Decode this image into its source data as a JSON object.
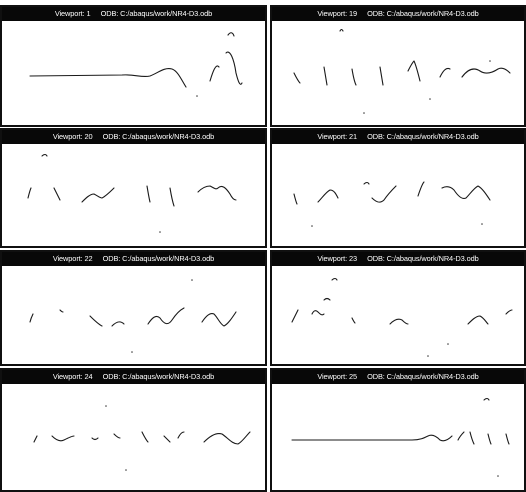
{
  "viewports": [
    {
      "id": "vp-1",
      "label": "Viewport: 1",
      "odb": "ODB: C:/abaqus/work/NR4-D3.odb"
    },
    {
      "id": "vp-19",
      "label": "Viewport: 19",
      "odb": "ODB: C:/abaqus/work/NR4-D3.odb"
    },
    {
      "id": "vp-20",
      "label": "Viewport: 20",
      "odb": "ODB: C:/abaqus/work/NR4-D3.odb"
    },
    {
      "id": "vp-21",
      "label": "Viewport: 21",
      "odb": "ODB: C:/abaqus/work/NR4-D3.odb"
    },
    {
      "id": "vp-22",
      "label": "Viewport: 22",
      "odb": "ODB: C:/abaqus/work/NR4-D3.odb"
    },
    {
      "id": "vp-23",
      "label": "Viewport: 23",
      "odb": "ODB: C:/abaqus/work/NR4-D3.odb"
    },
    {
      "id": "vp-24",
      "label": "Viewport: 24",
      "odb": "ODB: C:/abaqus/work/NR4-D3.odb"
    },
    {
      "id": "vp-25",
      "label": "Viewport: 25",
      "odb": "ODB: C:/abaqus/work/NR4-D3.odb"
    }
  ]
}
